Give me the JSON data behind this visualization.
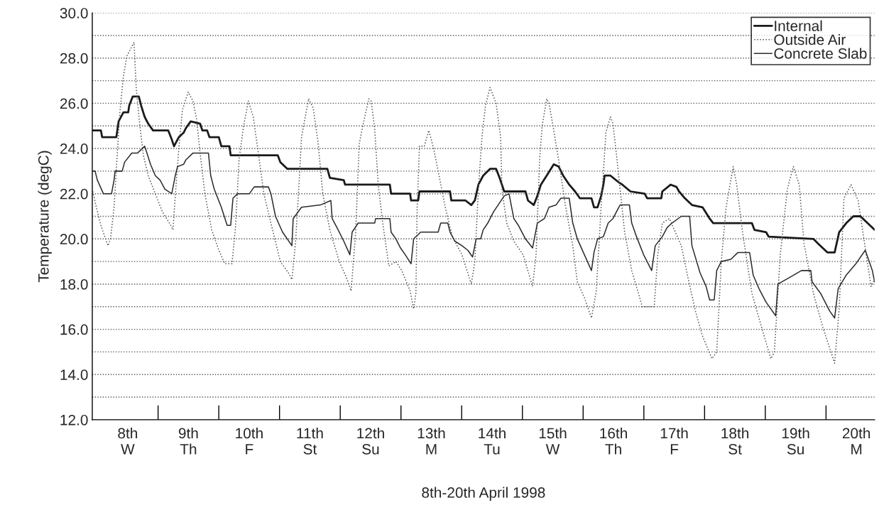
{
  "chart_data": {
    "type": "line",
    "xlabel": "8th-20th April 1998",
    "ylabel": "Temperature (degC)",
    "xlim": [
      "1998-04-07T22:00",
      "1998-04-20T19:12"
    ],
    "ylim": [
      12,
      30
    ],
    "xticks": [
      {
        "value": "1998-04-08T12:00",
        "label": "8th\nW"
      },
      {
        "value": "1998-04-09T12:00",
        "label": "9th\nTh"
      },
      {
        "value": "1998-04-10T12:00",
        "label": "10th\nF"
      },
      {
        "value": "1998-04-11T12:00",
        "label": "11th\nSt"
      },
      {
        "value": "1998-04-12T12:00",
        "label": "12th\nSu"
      },
      {
        "value": "1998-04-13T12:00",
        "label": "13th\nM"
      },
      {
        "value": "1998-04-14T12:00",
        "label": "14th\nTu"
      },
      {
        "value": "1998-04-15T12:00",
        "label": "15th\nW"
      },
      {
        "value": "1998-04-16T12:00",
        "label": "16th\nTh"
      },
      {
        "value": "1998-04-17T12:00",
        "label": "17th\nF"
      },
      {
        "value": "1998-04-18T12:00",
        "label": "18th\nSt"
      },
      {
        "value": "1998-04-19T12:00",
        "label": "19th\nSu"
      },
      {
        "value": "1998-04-20T12:00",
        "label": "20th\nM"
      }
    ],
    "yticks": [
      {
        "value": 12,
        "label": "12.0"
      },
      {
        "value": 13,
        "label": null
      },
      {
        "value": 14,
        "label": "14.0"
      },
      {
        "value": 15,
        "label": null
      },
      {
        "value": 16,
        "label": "16.0"
      },
      {
        "value": 17,
        "label": null
      },
      {
        "value": 18,
        "label": "18.0"
      },
      {
        "value": 19,
        "label": null
      },
      {
        "value": 20,
        "label": "20.0"
      },
      {
        "value": 21,
        "label": null
      },
      {
        "value": 22,
        "label": "22.0"
      },
      {
        "value": 23,
        "label": null
      },
      {
        "value": 24,
        "label": "24.0"
      },
      {
        "value": 25,
        "label": null
      },
      {
        "value": 26,
        "label": "26.0"
      },
      {
        "value": 27,
        "label": null
      },
      {
        "value": 28,
        "label": "28.0"
      },
      {
        "value": 29,
        "label": null
      },
      {
        "value": 30,
        "label": "30.0"
      }
    ],
    "grid": "y",
    "legend": "top right",
    "series": [
      {
        "name": "Internal",
        "color": "#1a1a1a",
        "line_style": "solid",
        "x": [
          "1998-04-07T22:12",
          "1998-04-08T01:24",
          "1998-04-08T01:54",
          "1998-04-08T07:30",
          "1998-04-08T08:24",
          "1998-04-08T10:18",
          "1998-04-08T12:12",
          "1998-04-08T12:36",
          "1998-04-08T14:00",
          "1998-04-08T16:24",
          "1998-04-08T17:18",
          "1998-04-08T18:42",
          "1998-04-08T20:06",
          "1998-04-08T22:00",
          "1998-04-09T04:00",
          "1998-04-09T05:24",
          "1998-04-09T06:18",
          "1998-04-09T07:42",
          "1998-04-09T08:12",
          "1998-04-09T10:06",
          "1998-04-09T11:00",
          "1998-04-09T12:54",
          "1998-04-09T16:36",
          "1998-04-09T17:30",
          "1998-04-09T19:24",
          "1998-04-09T20:18",
          "1998-04-10T00:00",
          "1998-04-10T01:00",
          "1998-04-10T04:12",
          "1998-04-10T04:42",
          "1998-04-10T23:18",
          "1998-04-11T00:18",
          "1998-04-11T03:06",
          "1998-04-11T18:54",
          "1998-04-11T19:54",
          "1998-04-12T01:24",
          "1998-04-12T01:54",
          "1998-04-12T19:36",
          "1998-04-12T20:06",
          "1998-04-13T03:36",
          "1998-04-13T04:00",
          "1998-04-13T06:48",
          "1998-04-13T07:18",
          "1998-04-13T19:24",
          "1998-04-13T19:54",
          "1998-04-14T01:30",
          "1998-04-14T03:48",
          "1998-04-14T05:12",
          "1998-04-14T06:36",
          "1998-04-14T08:30",
          "1998-04-14T11:12",
          "1998-04-14T13:36",
          "1998-04-14T15:00",
          "1998-04-14T16:48",
          "1998-04-15T01:12",
          "1998-04-15T02:12",
          "1998-04-15T04:30",
          "1998-04-15T05:54",
          "1998-04-15T07:18",
          "1998-04-15T09:36",
          "1998-04-15T12:24",
          "1998-04-15T14:18",
          "1998-04-15T16:06",
          "1998-04-15T18:30",
          "1998-04-15T20:48",
          "1998-04-15T22:42",
          "1998-04-16T03:18",
          "1998-04-16T04:18",
          "1998-04-16T05:42",
          "1998-04-16T07:06",
          "1998-04-16T08:00",
          "1998-04-16T08:30",
          "1998-04-16T10:48",
          "1998-04-16T14:06",
          "1998-04-16T15:30",
          "1998-04-16T18:42",
          "1998-04-17T00:18",
          "1998-04-17T01:18",
          "1998-04-17T06:54",
          "1998-04-17T07:18",
          "1998-04-17T10:36",
          "1998-04-17T12:54",
          "1998-04-17T13:54",
          "1998-04-17T16:12",
          "1998-04-17T19:00",
          "1998-04-17T23:12",
          "1998-04-18T02:00",
          "1998-04-18T03:24",
          "1998-04-18T18:42",
          "1998-04-18T19:42",
          "1998-04-19T00:18",
          "1998-04-19T01:18",
          "1998-04-19T19:00",
          "1998-04-19T20:48",
          "1998-04-20T00:36",
          "1998-04-20T03:24",
          "1998-04-20T05:12",
          "1998-04-20T08:00",
          "1998-04-20T10:48",
          "1998-04-20T13:36",
          "1998-04-20T16:24",
          "1998-04-20T19:12"
        ],
        "values": [
          24.8,
          24.8,
          24.5,
          24.5,
          25.2,
          25.6,
          25.6,
          25.9,
          26.3,
          26.3,
          25.9,
          25.4,
          25.1,
          24.8,
          24.8,
          24.4,
          24.1,
          24.4,
          24.5,
          24.7,
          24.9,
          25.2,
          25.1,
          24.8,
          24.8,
          24.5,
          24.5,
          24.1,
          24.1,
          23.7,
          23.7,
          23.4,
          23.1,
          23.1,
          22.7,
          22.6,
          22.4,
          22.4,
          22.0,
          22.0,
          21.7,
          21.7,
          22.1,
          22.1,
          21.7,
          21.7,
          21.5,
          21.7,
          22.4,
          22.8,
          23.1,
          23.1,
          22.7,
          22.1,
          22.1,
          21.7,
          21.5,
          21.9,
          22.4,
          22.8,
          23.3,
          23.2,
          22.8,
          22.4,
          22.1,
          21.8,
          21.8,
          21.4,
          21.4,
          21.9,
          22.4,
          22.8,
          22.8,
          22.5,
          22.4,
          22.1,
          22.0,
          21.8,
          21.8,
          22.1,
          22.4,
          22.3,
          22.1,
          21.8,
          21.5,
          21.4,
          20.9,
          20.7,
          20.7,
          20.4,
          20.3,
          20.1,
          20.0,
          19.8,
          19.4,
          19.4,
          20.3,
          20.7,
          21.0,
          21.0,
          20.7,
          20.4
        ]
      },
      {
        "name": "Outside Air",
        "color": "#555555",
        "line_style": "dotted",
        "x": [
          "1998-04-07T22:12",
          "1998-04-07T23:36",
          "1998-04-08T01:24",
          "1998-04-08T04:12",
          "1998-04-08T05:12",
          "1998-04-08T06:36",
          "1998-04-08T08:00",
          "1998-04-08T08:54",
          "1998-04-08T10:18",
          "1998-04-08T11:42",
          "1998-04-08T13:36",
          "1998-04-08T14:30",
          "1998-04-08T15:24",
          "1998-04-08T16:48",
          "1998-04-08T18:12",
          "1998-04-08T20:06",
          "1998-04-08T22:54",
          "1998-04-09T01:42",
          "1998-04-09T04:30",
          "1998-04-09T05:54",
          "1998-04-09T06:48",
          "1998-04-09T08:12",
          "1998-04-09T09:36",
          "1998-04-09T11:54",
          "1998-04-09T13:48",
          "1998-04-09T15:12",
          "1998-04-09T16:36",
          "1998-04-09T18:30",
          "1998-04-09T21:12",
          "1998-04-10T00:00",
          "1998-04-10T02:24",
          "1998-04-10T05:12",
          "1998-04-10T06:36",
          "1998-04-10T08:00",
          "1998-04-10T09:48",
          "1998-04-10T11:42",
          "1998-04-10T13:36",
          "1998-04-10T15:30",
          "1998-04-10T17:48",
          "1998-04-10T20:36",
          "1998-04-11T00:18",
          "1998-04-11T03:30",
          "1998-04-11T04:54",
          "1998-04-11T06:18",
          "1998-04-11T07:42",
          "1998-04-11T08:42",
          "1998-04-11T10:30",
          "1998-04-11T11:30",
          "1998-04-11T13:18",
          "1998-04-11T15:12",
          "1998-04-11T17:06",
          "1998-04-11T19:54",
          "1998-04-11T23:36",
          "1998-04-12T02:24",
          "1998-04-12T04:18",
          "1998-04-12T06:06",
          "1998-04-12T07:30",
          "1998-04-12T08:54",
          "1998-04-12T11:18",
          "1998-04-12T12:12",
          "1998-04-12T13:36",
          "1998-04-12T15:00",
          "1998-04-12T16:48",
          "1998-04-12T19:12",
          "1998-04-12T22:00",
          "1998-04-13T00:18",
          "1998-04-13T03:36",
          "1998-04-13T05:00",
          "1998-04-13T05:54",
          "1998-04-13T06:24",
          "1998-04-13T07:18",
          "1998-04-13T09:12",
          "1998-04-13T11:00",
          "1998-04-13T12:54",
          "1998-04-13T14:42",
          "1998-04-13T17:30",
          "1998-04-13T20:18",
          "1998-04-14T00:06",
          "1998-04-14T03:48",
          "1998-04-14T05:12",
          "1998-04-14T06:36",
          "1998-04-14T08:00",
          "1998-04-14T09:24",
          "1998-04-14T11:12",
          "1998-04-14T13:36",
          "1998-04-14T15:24",
          "1998-04-14T15:54",
          "1998-04-14T17:48",
          "1998-04-14T20:36",
          "1998-04-15T00:18",
          "1998-04-15T04:00",
          "1998-04-15T05:24",
          "1998-04-15T06:48",
          "1998-04-15T07:48",
          "1998-04-15T09:36",
          "1998-04-15T10:30",
          "1998-04-15T12:24",
          "1998-04-15T14:18",
          "1998-04-15T17:06",
          "1998-04-15T19:54",
          "1998-04-15T21:42",
          "1998-04-16T00:30",
          "1998-04-16T03:18",
          "1998-04-16T05:12",
          "1998-04-16T07:06",
          "1998-04-16T09:00",
          "1998-04-16T10:48",
          "1998-04-16T11:48",
          "1998-04-16T13:12",
          "1998-04-16T14:36",
          "1998-04-16T16:24",
          "1998-04-16T19:12",
          "1998-04-16T23:24",
          "1998-04-17T01:42",
          "1998-04-17T04:06",
          "1998-04-17T05:30",
          "1998-04-17T07:18",
          "1998-04-17T10:06",
          "1998-04-17T14:48",
          "1998-04-17T17:36",
          "1998-04-17T20:24",
          "1998-04-17T23:12",
          "1998-04-18T02:54",
          "1998-04-18T04:48",
          "1998-04-18T06:36",
          "1998-04-18T08:30",
          "1998-04-18T11:18",
          "1998-04-18T12:42",
          "1998-04-18T15:00",
          "1998-04-18T18:42",
          "1998-04-18T22:30",
          "1998-04-19T02:12",
          "1998-04-19T03:36",
          "1998-04-19T05:54",
          "1998-04-19T08:42",
          "1998-04-19T11:06",
          "1998-04-19T13:24",
          "1998-04-19T15:18",
          "1998-04-19T19:00",
          "1998-04-19T22:42",
          "1998-04-20T03:24",
          "1998-04-20T05:12",
          "1998-04-20T07:06",
          "1998-04-20T09:54",
          "1998-04-20T12:42",
          "1998-04-20T15:30",
          "1998-04-20T17:48",
          "1998-04-20T19:12"
        ],
        "values": [
          22.1,
          21.4,
          20.6,
          19.7,
          20.0,
          21.4,
          24.0,
          25.6,
          27.2,
          28.1,
          28.5,
          28.7,
          26.6,
          25.0,
          23.7,
          22.8,
          22.0,
          21.2,
          20.7,
          20.4,
          21.9,
          24.0,
          25.7,
          26.5,
          26.1,
          25.3,
          23.8,
          22.0,
          20.4,
          19.5,
          18.9,
          18.9,
          20.5,
          23.5,
          25.0,
          26.1,
          25.4,
          23.9,
          22.0,
          20.7,
          19.0,
          18.5,
          18.2,
          19.8,
          22.4,
          24.5,
          25.6,
          26.2,
          25.8,
          24.3,
          22.0,
          20.4,
          19.0,
          18.3,
          17.7,
          20.3,
          24.2,
          25.0,
          26.2,
          26.1,
          24.9,
          22.4,
          20.7,
          18.8,
          19.0,
          18.6,
          17.7,
          16.9,
          17.6,
          21.4,
          24.1,
          24.1,
          24.8,
          24.0,
          23.0,
          21.4,
          20.1,
          19.3,
          18.0,
          19.0,
          22.2,
          24.5,
          25.9,
          26.7,
          26.0,
          24.5,
          22.2,
          20.7,
          19.9,
          19.3,
          17.9,
          19.3,
          23.5,
          25.0,
          26.2,
          26.0,
          24.8,
          23.5,
          21.4,
          19.7,
          18.1,
          17.4,
          16.5,
          17.7,
          21.4,
          24.7,
          25.4,
          25.1,
          23.7,
          22.2,
          20.3,
          18.6,
          17.0,
          17.0,
          17.0,
          19.3,
          20.7,
          20.9,
          19.7,
          18.2,
          16.8,
          15.7,
          14.7,
          15.0,
          19.0,
          21.4,
          23.2,
          22.4,
          20.3,
          17.6,
          16.1,
          14.7,
          15.0,
          19.3,
          22.2,
          23.2,
          22.4,
          19.8,
          17.6,
          16.1,
          14.5,
          16.9,
          21.8,
          22.4,
          21.7,
          19.6,
          17.9,
          18.2
        ]
      },
      {
        "name": "Concrete Slab",
        "color": "#2b2b2b",
        "line_style": "solid",
        "x": [
          "1998-04-07T22:12",
          "1998-04-07T23:06",
          "1998-04-08T00:00",
          "1998-04-08T02:24",
          "1998-04-08T05:36",
          "1998-04-08T06:36",
          "1998-04-08T07:00",
          "1998-04-08T09:48",
          "1998-04-08T10:48",
          "1998-04-08T13:36",
          "1998-04-08T15:54",
          "1998-04-08T18:42",
          "1998-04-08T19:36",
          "1998-04-08T21:00",
          "1998-04-08T22:54",
          "1998-04-09T00:48",
          "1998-04-09T02:42",
          "1998-04-09T05:24",
          "1998-04-09T06:48",
          "1998-04-09T07:42",
          "1998-04-09T10:06",
          "1998-04-09T11:00",
          "1998-04-09T13:48",
          "1998-04-09T19:54",
          "1998-04-09T20:48",
          "1998-04-09T22:12",
          "1998-04-10T01:00",
          "1998-04-10T03:18",
          "1998-04-10T04:42",
          "1998-04-10T05:36",
          "1998-04-10T07:30",
          "1998-04-10T12:06",
          "1998-04-10T14:00",
          "1998-04-10T19:36",
          "1998-04-10T20:36",
          "1998-04-10T22:24",
          "1998-04-11T01:12",
          "1998-04-11T04:54",
          "1998-04-11T05:24",
          "1998-04-11T08:42",
          "1998-04-11T16:06",
          "1998-04-11T20:18",
          "1998-04-11T20:48",
          "1998-04-11T22:42",
          "1998-04-12T01:24",
          "1998-04-12T03:48",
          "1998-04-12T04:42",
          "1998-04-12T07:06",
          "1998-04-12T13:36",
          "1998-04-12T14:00",
          "1998-04-12T19:36",
          "1998-04-12T20:06",
          "1998-04-12T22:00",
          "1998-04-12T23:48",
          "1998-04-13T01:42",
          "1998-04-13T04:00",
          "1998-04-13T05:00",
          "1998-04-13T07:48",
          "1998-04-13T14:42",
          "1998-04-13T15:42",
          "1998-04-13T18:30",
          "1998-04-13T19:24",
          "1998-04-13T21:18",
          "1998-04-14T00:06",
          "1998-04-14T02:24",
          "1998-04-14T04:18",
          "1998-04-14T05:42",
          "1998-04-14T07:30",
          "1998-04-14T08:30",
          "1998-04-14T10:18",
          "1998-04-14T12:36",
          "1998-04-14T15:00",
          "1998-04-14T16:48",
          "1998-04-14T18:42",
          "1998-04-14T20:36",
          "1998-04-14T22:24",
          "1998-04-15T01:12",
          "1998-04-15T04:00",
          "1998-04-15T05:54",
          "1998-04-15T08:42",
          "1998-04-15T10:30",
          "1998-04-15T13:18",
          "1998-04-15T15:12",
          "1998-04-15T18:30",
          "1998-04-15T19:54",
          "1998-04-15T21:42",
          "1998-04-16T00:30",
          "1998-04-16T03:18",
          "1998-04-16T04:18",
          "1998-04-16T05:42",
          "1998-04-16T08:00",
          "1998-04-16T09:54",
          "1998-04-16T11:48",
          "1998-04-16T12:42",
          "1998-04-16T14:36",
          "1998-04-16T18:18",
          "1998-04-16T19:12",
          "1998-04-16T21:06",
          "1998-04-16T23:54",
          "1998-04-17T03:06",
          "1998-04-17T04:30",
          "1998-04-17T07:18",
          "1998-04-17T09:12",
          "1998-04-17T11:06",
          "1998-04-17T14:48",
          "1998-04-17T18:06",
          "1998-04-17T19:00",
          "1998-04-17T22:12",
          "1998-04-18T00:36",
          "1998-04-18T02:00",
          "1998-04-18T03:48",
          "1998-04-18T04:48",
          "1998-04-18T06:36",
          "1998-04-18T10:24",
          "1998-04-18T13:12",
          "1998-04-18T17:48",
          "1998-04-18T19:12",
          "1998-04-18T21:30",
          "1998-04-19T00:18",
          "1998-04-19T04:06",
          "1998-04-19T05:00",
          "1998-04-19T09:42",
          "1998-04-19T14:18",
          "1998-04-19T18:00",
          "1998-04-19T18:30",
          "1998-04-19T21:48",
          "1998-04-20T01:30",
          "1998-04-20T03:24",
          "1998-04-20T04:48",
          "1998-04-20T08:00",
          "1998-04-20T11:48",
          "1998-04-20T15:30",
          "1998-04-20T18:18",
          "1998-04-20T19:12"
        ],
        "values": [
          23.0,
          23.0,
          22.6,
          22.0,
          22.0,
          22.6,
          23.0,
          23.0,
          23.4,
          23.8,
          23.8,
          24.1,
          23.8,
          23.3,
          22.8,
          22.6,
          22.2,
          22.0,
          22.8,
          23.2,
          23.3,
          23.5,
          23.8,
          23.8,
          22.8,
          22.2,
          21.4,
          20.6,
          20.6,
          21.8,
          22.0,
          22.0,
          22.3,
          22.3,
          22.0,
          21.0,
          20.3,
          19.7,
          20.9,
          21.4,
          21.5,
          21.7,
          20.9,
          20.5,
          19.9,
          19.3,
          20.3,
          20.7,
          20.7,
          20.9,
          20.9,
          20.3,
          20.0,
          19.6,
          19.3,
          18.9,
          20.0,
          20.3,
          20.3,
          20.7,
          20.7,
          20.3,
          19.9,
          19.7,
          19.5,
          19.2,
          20.0,
          20.0,
          20.4,
          20.7,
          21.2,
          21.6,
          21.9,
          22.0,
          20.9,
          20.6,
          20.0,
          19.6,
          20.7,
          20.9,
          21.4,
          21.5,
          21.8,
          21.8,
          20.7,
          20.0,
          19.3,
          18.6,
          19.4,
          20.0,
          20.1,
          20.7,
          20.9,
          21.1,
          21.5,
          21.5,
          20.7,
          20.1,
          19.3,
          18.6,
          19.7,
          20.1,
          20.5,
          20.7,
          21.0,
          21.0,
          19.7,
          18.5,
          17.9,
          17.3,
          17.3,
          18.6,
          19.0,
          19.1,
          19.4,
          19.4,
          18.4,
          17.8,
          17.2,
          16.6,
          18.0,
          18.3,
          18.6,
          18.6,
          18.1,
          17.6,
          16.8,
          16.5,
          17.8,
          18.4,
          18.9,
          19.5,
          18.6,
          18.1
        ]
      }
    ]
  }
}
